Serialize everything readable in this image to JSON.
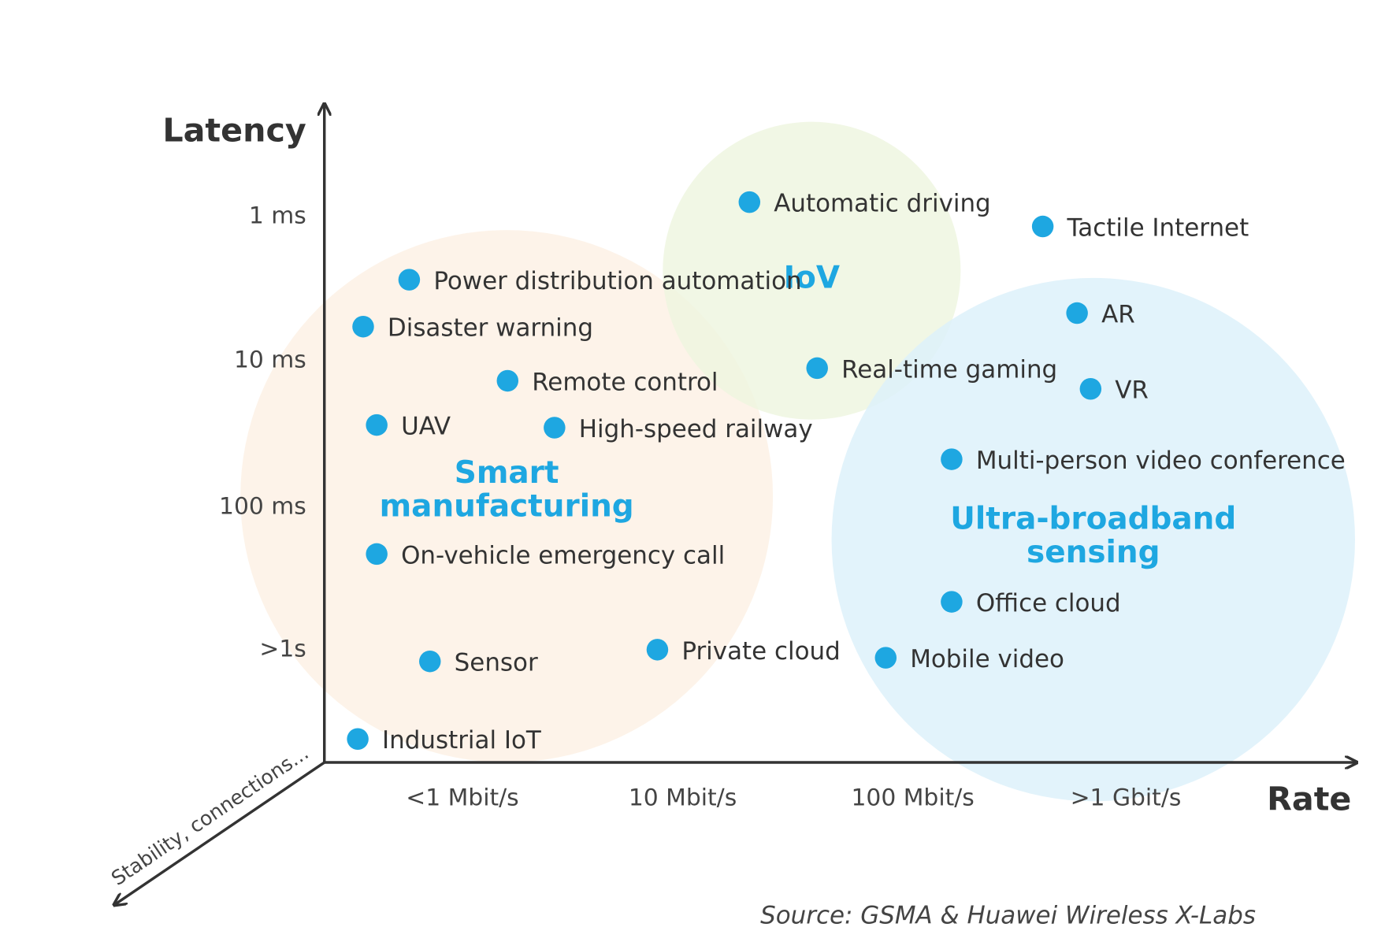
{
  "axes": {
    "y_title": "Latency",
    "x_title": "Rate",
    "z_title": "Stability, connections...",
    "y_levels": [
      "1 ms",
      "10 ms",
      "100 ms",
      ">1s"
    ],
    "x_levels": [
      "<1 Mbit/s",
      "10 Mbit/s",
      "100 Mbit/s",
      ">1 Gbit/s"
    ]
  },
  "groups": [
    {
      "lines": [
        "Smart",
        "manufacturing"
      ]
    },
    {
      "lines": [
        "IoV"
      ]
    },
    {
      "lines": [
        "Ultra-broadband",
        "sensing"
      ]
    }
  ],
  "applications": [
    "Automatic driving",
    "Tactile Internet",
    "Power distribution automation",
    "Disaster warning",
    "AR",
    "Real-time gaming",
    "VR",
    "Remote control",
    "UAV",
    "High-speed railway",
    "Multi-person video conference",
    "On-vehicle emergency call",
    "Office cloud",
    "Private cloud",
    "Mobile video",
    "Sensor",
    "Industrial IoT"
  ],
  "source": "Source: GSMA & Huawei Wireless X-Labs"
}
